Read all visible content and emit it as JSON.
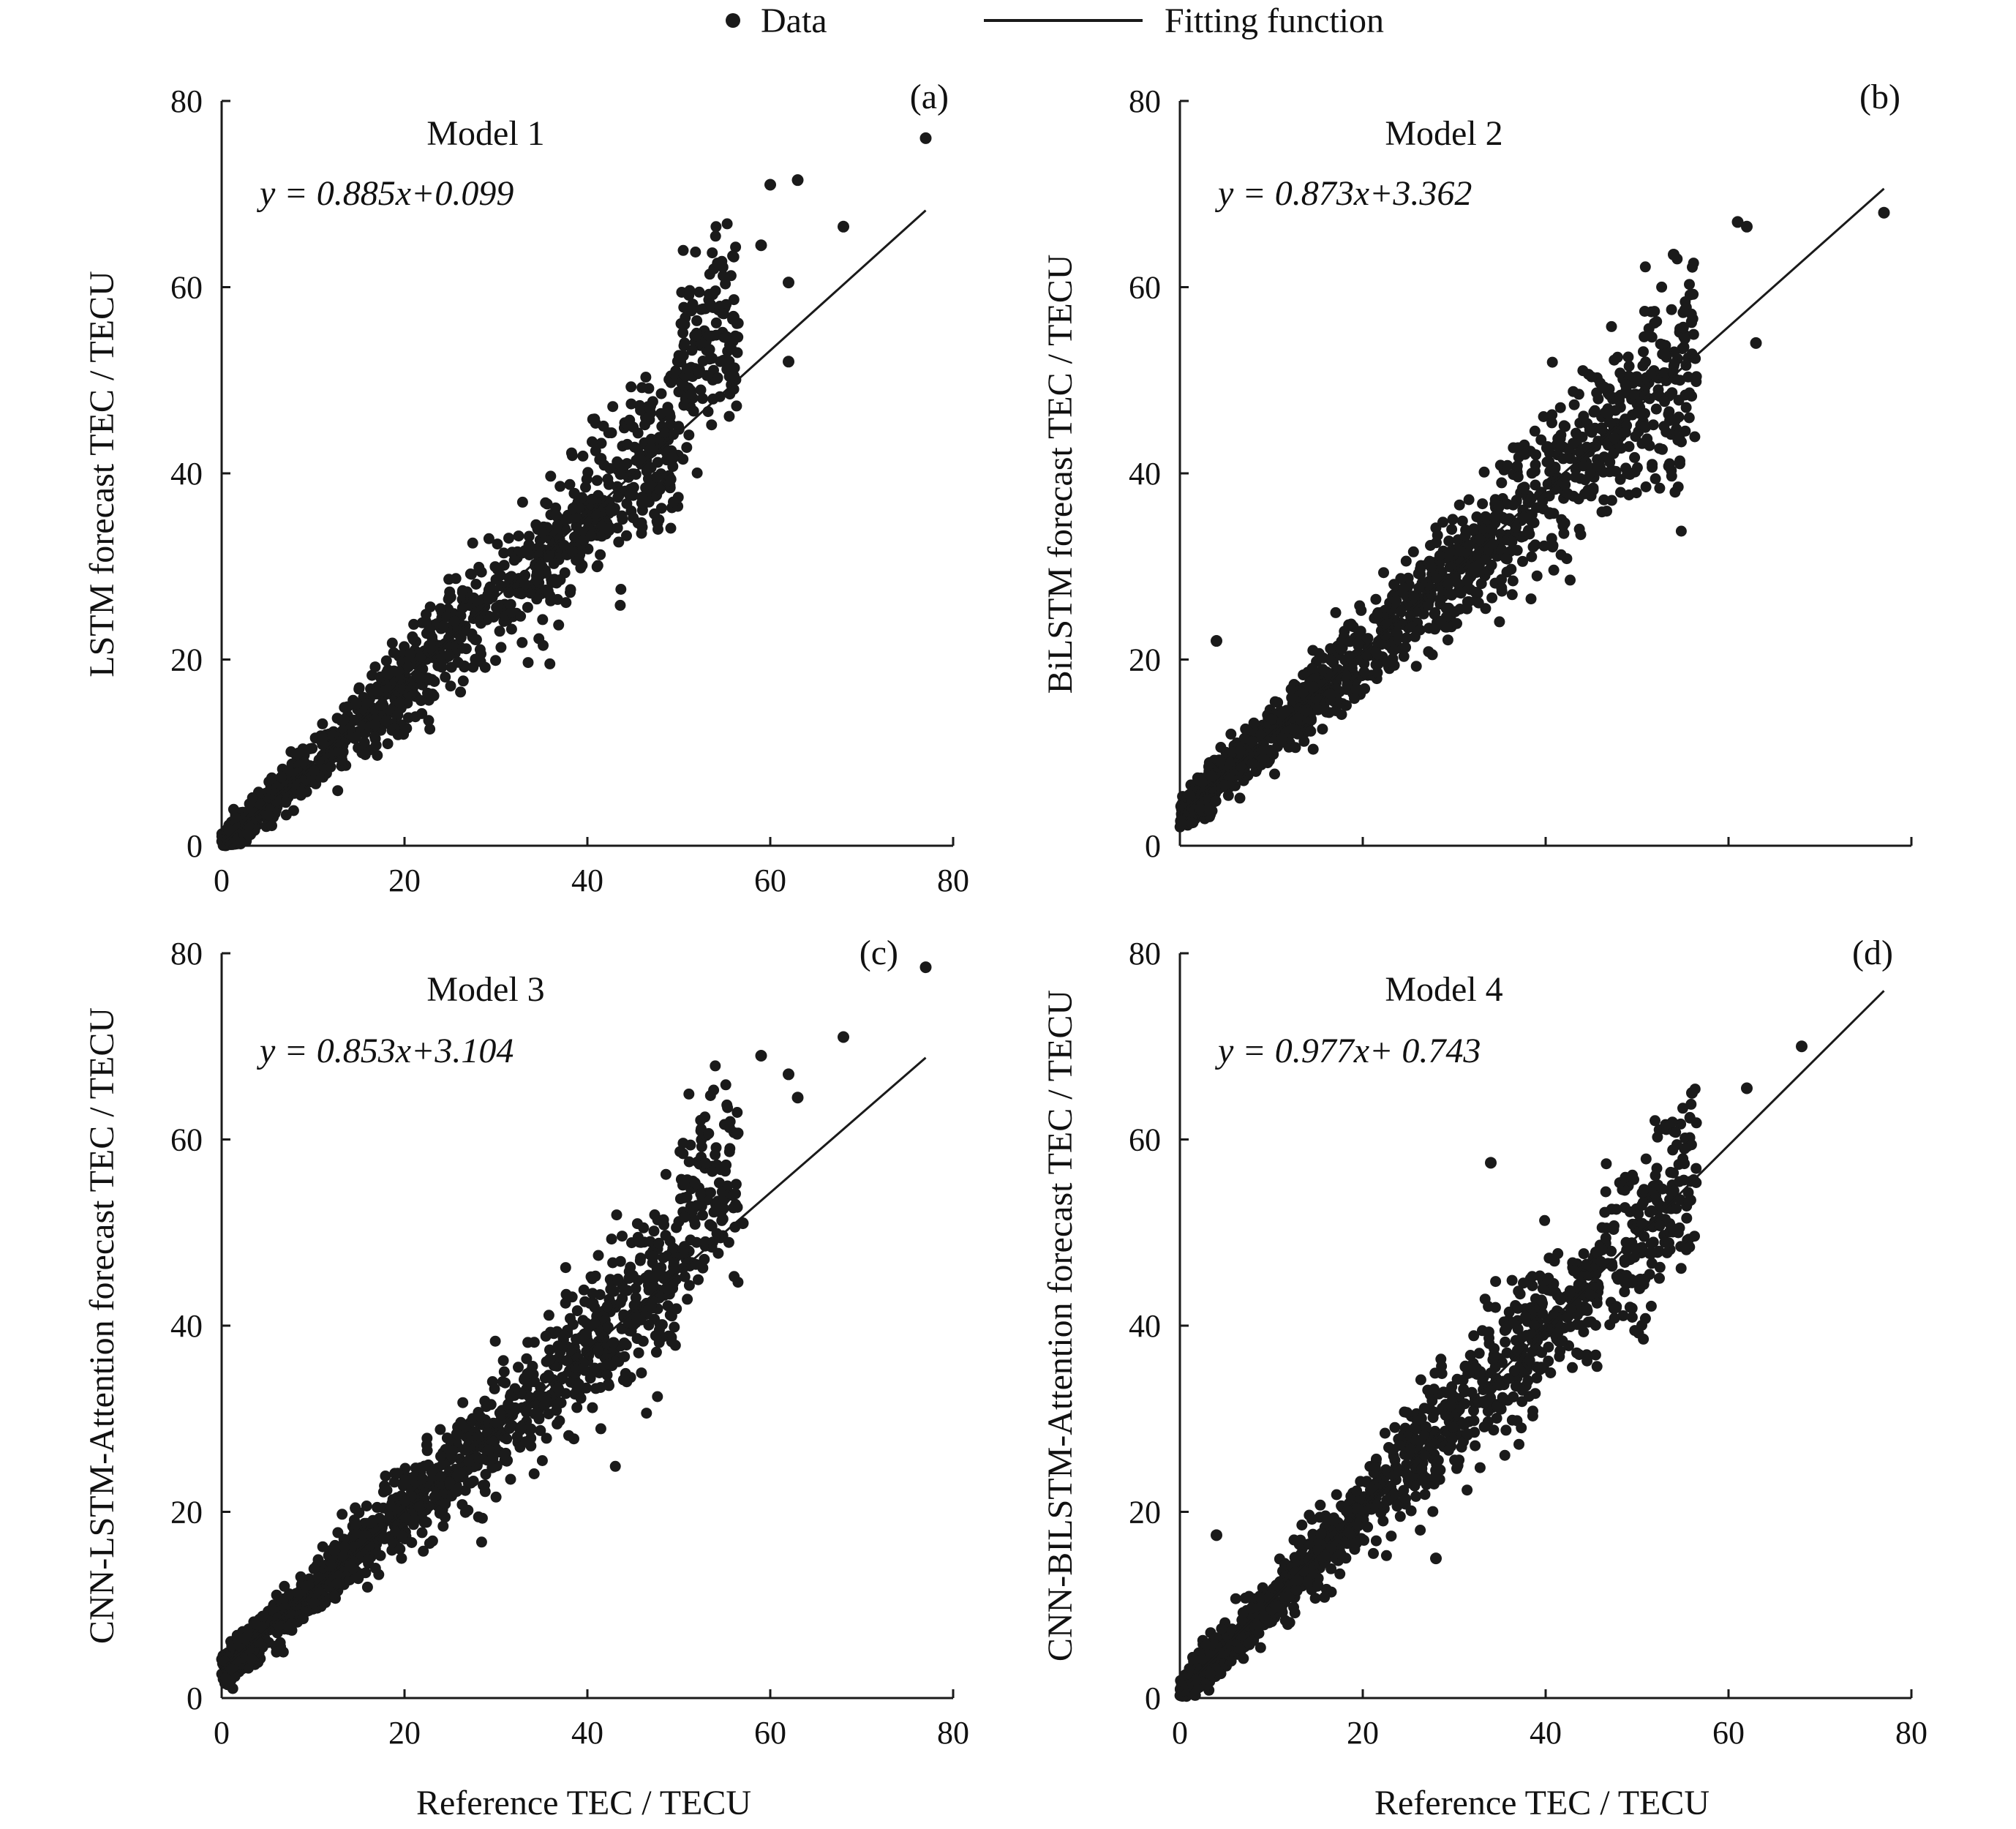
{
  "legend": {
    "data_label": "Data",
    "fit_label": "Fitting function"
  },
  "colors": {
    "points": "#1a1a1a",
    "fit_line": "#1a1a1a",
    "axes": "#1a1a1a",
    "background": "#ffffff"
  },
  "chart_data": [
    {
      "type": "scatter",
      "panel": "(a)",
      "title": "Model 1",
      "equation": "y = 0.885x+0.099",
      "xlabel": "Reference TEC / TECU",
      "ylabel": "LSTM  forecast TEC / TECU",
      "xlim": [
        0,
        80
      ],
      "ylim": [
        0,
        80
      ],
      "xticks": [
        "0",
        "20",
        "40",
        "60",
        "80"
      ],
      "yticks": [
        "0",
        "20",
        "40",
        "60",
        "80"
      ],
      "fit": {
        "slope": 0.885,
        "intercept": 0.099,
        "x_range": [
          0,
          77
        ]
      },
      "notable_points": [
        [
          77,
          76
        ],
        [
          63,
          71.5
        ],
        [
          60,
          71
        ],
        [
          68,
          66.5
        ],
        [
          59,
          64.5
        ],
        [
          62,
          60.5
        ],
        [
          62,
          52
        ]
      ],
      "point_count": 1400
    },
    {
      "type": "scatter",
      "panel": "(b)",
      "title": "Model 2",
      "equation": "y = 0.873x+3.362",
      "xlabel": "",
      "ylabel": "BiLSTM forecast TEC / TECU",
      "xlim": [
        0,
        80
      ],
      "ylim": [
        0,
        80
      ],
      "xticks": [],
      "yticks": [
        "0",
        "20",
        "40",
        "60",
        "80"
      ],
      "fit": {
        "slope": 0.873,
        "intercept": 3.362,
        "x_range": [
          0,
          77
        ]
      },
      "notable_points": [
        [
          77,
          68
        ],
        [
          61,
          67
        ],
        [
          62,
          66.5
        ],
        [
          54,
          63.5
        ],
        [
          63,
          54
        ],
        [
          4,
          22
        ]
      ],
      "point_count": 1400
    },
    {
      "type": "scatter",
      "panel": "(c)",
      "title": "Model 3",
      "equation": "y = 0.853x+3.104",
      "xlabel": "Reference TEC / TECU",
      "ylabel": "CNN-LSTM-Attention  forecast TEC / TECU",
      "xlim": [
        0,
        80
      ],
      "ylim": [
        0,
        80
      ],
      "xticks": [
        "0",
        "20",
        "40",
        "60",
        "80"
      ],
      "yticks": [
        "0",
        "20",
        "40",
        "60",
        "80"
      ],
      "fit": {
        "slope": 0.853,
        "intercept": 3.104,
        "x_range": [
          0,
          77
        ]
      },
      "notable_points": [
        [
          77,
          78.5
        ],
        [
          68,
          71
        ],
        [
          59,
          69
        ],
        [
          62,
          67
        ],
        [
          63,
          64.5
        ],
        [
          57,
          51
        ]
      ],
      "point_count": 1400
    },
    {
      "type": "scatter",
      "panel": "(d)",
      "title": "Model 4",
      "equation": "y = 0.977x+ 0.743",
      "xlabel": "Reference TEC / TECU",
      "ylabel": "CNN-BILSTM-Attention  forecast TEC / TECU",
      "xlim": [
        0,
        80
      ],
      "ylim": [
        0,
        80
      ],
      "xticks": [
        "0",
        "20",
        "40",
        "60",
        "80"
      ],
      "yticks": [
        "0",
        "20",
        "40",
        "60",
        "80"
      ],
      "fit": {
        "slope": 0.977,
        "intercept": 0.743,
        "x_range": [
          0,
          77
        ]
      },
      "notable_points": [
        [
          68,
          70
        ],
        [
          62,
          65.5
        ],
        [
          56,
          65
        ],
        [
          34,
          57.5
        ],
        [
          28,
          15
        ],
        [
          4,
          17.5
        ]
      ],
      "point_count": 1400
    }
  ]
}
